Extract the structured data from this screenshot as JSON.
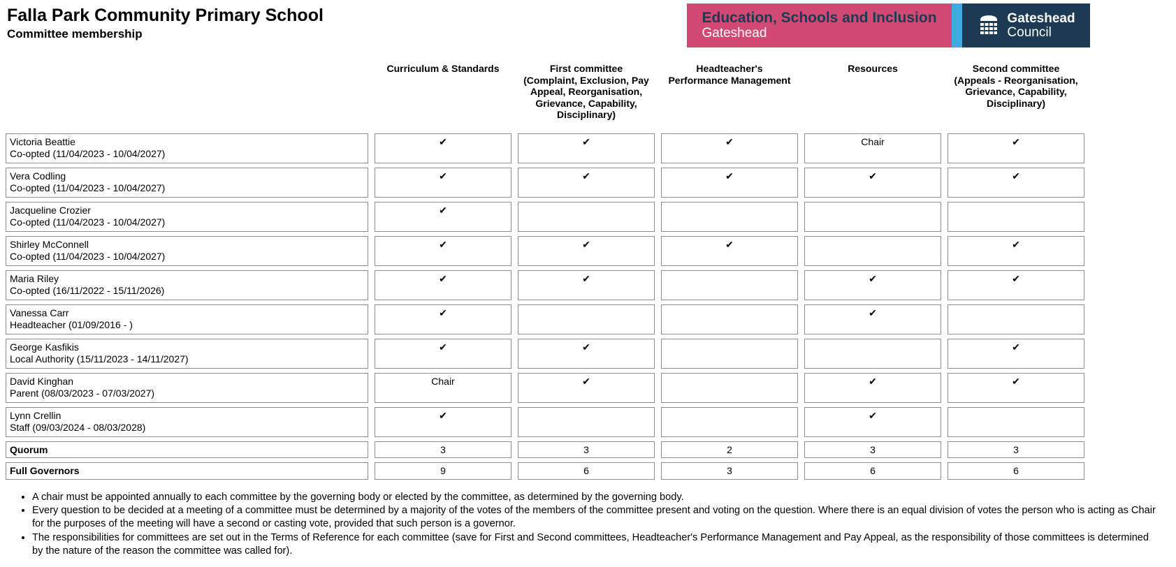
{
  "header": {
    "school_name": "Falla Park Community Primary School",
    "page_title": "Committee membership"
  },
  "banners": {
    "department": {
      "line1": "Education, Schools and Inclusion",
      "line2": "Gateshead",
      "bg_color": "#d14a74",
      "line1_color": "#1c3a53",
      "line2_color": "#ffffff"
    },
    "divider_color": "#3fa9e1",
    "council": {
      "line1": "Gateshead",
      "line2": "Council",
      "bg_color": "#1c3a53",
      "icon": "council-building-icon"
    }
  },
  "table": {
    "columns": [
      "Curriculum & Standards",
      "First committee (Complaint, Exclusion, Pay Appeal, Reorganisation, Grievance, Capability, Disciplinary)",
      "Headteacher's Performance Management",
      "Resources",
      "Second committee (Appeals - Reorganisation, Grievance, Capability, Disciplinary)"
    ],
    "rows": [
      {
        "name": "Victoria Beattie",
        "role": "Co-opted (11/04/2023 - 10/04/2027)",
        "cells": [
          "✔",
          "✔",
          "✔",
          "Chair",
          "✔"
        ]
      },
      {
        "name": "Vera Codling",
        "role": "Co-opted (11/04/2023 - 10/04/2027)",
        "cells": [
          "✔",
          "✔",
          "✔",
          "✔",
          "✔"
        ]
      },
      {
        "name": "Jacqueline Crozier",
        "role": "Co-opted (11/04/2023 - 10/04/2027)",
        "cells": [
          "✔",
          "",
          "",
          "",
          ""
        ]
      },
      {
        "name": "Shirley McConnell",
        "role": "Co-opted (11/04/2023 - 10/04/2027)",
        "cells": [
          "✔",
          "✔",
          "✔",
          "",
          "✔"
        ]
      },
      {
        "name": "Maria Riley",
        "role": "Co-opted (16/11/2022 - 15/11/2026)",
        "cells": [
          "✔",
          "✔",
          "",
          "✔",
          "✔"
        ]
      },
      {
        "name": "Vanessa Carr",
        "role": "Headteacher (01/09/2016 - )",
        "cells": [
          "✔",
          "",
          "",
          "✔",
          ""
        ]
      },
      {
        "name": "George Kasfikis",
        "role": "Local Authority (15/11/2023 - 14/11/2027)",
        "cells": [
          "✔",
          "✔",
          "",
          "",
          "✔"
        ]
      },
      {
        "name": "David Kinghan",
        "role": "Parent (08/03/2023 - 07/03/2027)",
        "cells": [
          "Chair",
          "✔",
          "",
          "✔",
          "✔"
        ]
      },
      {
        "name": "Lynn Crellin",
        "role": "Staff (09/03/2024 - 08/03/2028)",
        "cells": [
          "✔",
          "",
          "",
          "✔",
          ""
        ]
      }
    ],
    "summary_rows": [
      {
        "label": "Quorum",
        "cells": [
          "3",
          "3",
          "2",
          "3",
          "3"
        ]
      },
      {
        "label": "Full Governors",
        "cells": [
          "9",
          "6",
          "3",
          "6",
          "6"
        ]
      }
    ]
  },
  "notes": [
    "A chair must be appointed annually to each committee by the governing body or elected by the committee, as determined by the governing body.",
    "Every question to be decided at a meeting of a committee must be determined by a majority of the votes of the members of the committee present and voting on the question. Where there is an equal division of votes the person who is acting as Chair for the purposes of the meeting will have a second or casting vote, provided that such person is a governor.",
    "The responsibilities for committees are set out in the Terms of Reference for each committee (save for First and Second committees, Headteacher's Performance Management and Pay Appeal, as the responsibility of those committees is determined by the nature of the reason the committee was called for)."
  ]
}
